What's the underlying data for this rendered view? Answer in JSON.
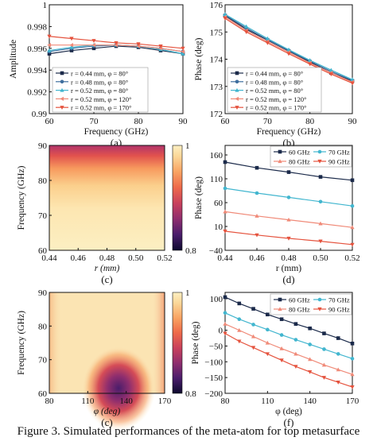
{
  "caption": "Figure 3. Simulated performances of the meta-atom for top metasurface",
  "colors": {
    "navy": "#1b2a4a",
    "steel": "#3d6e9e",
    "cyan": "#42b6cf",
    "salmon": "#f08a78",
    "coral": "#e5533e",
    "colormap": [
      "#0d0a2e",
      "#4a1d6b",
      "#8f2e6e",
      "#c9415c",
      "#ee6a4a",
      "#f9a463",
      "#fbd89a",
      "#fcefc2"
    ]
  },
  "chart_data": [
    {
      "id": "a",
      "type": "line",
      "panel_label": "(a)",
      "xlabel": "Frequency (GHz)",
      "ylabel": "Amplitude",
      "xlim": [
        60,
        90
      ],
      "ylim": [
        0.99,
        1
      ],
      "xticks": [
        "60",
        "70",
        "80",
        "90"
      ],
      "yticks": [
        "0.99",
        "0.992",
        "0.994",
        "0.996",
        "0.998",
        "1"
      ],
      "legend_position": "bottom-left",
      "x": [
        60,
        65,
        70,
        75,
        80,
        85,
        90
      ],
      "series": [
        {
          "name": "r = 0.44 mm, φ = 80°",
          "color": "#1b2a4a",
          "marker": "square",
          "values": [
            0.9955,
            0.9958,
            0.996,
            0.9962,
            0.9961,
            0.9958,
            0.9955
          ]
        },
        {
          "name": "r = 0.48 mm, φ = 80°",
          "color": "#3d6e9e",
          "marker": "circle",
          "values": [
            0.9957,
            0.996,
            0.9962,
            0.9963,
            0.9962,
            0.996,
            0.9957
          ]
        },
        {
          "name": "r = 0.52 mm, φ = 80°",
          "color": "#42b6cf",
          "marker": "triangle-up",
          "values": [
            0.9958,
            0.9961,
            0.9963,
            0.9963,
            0.9962,
            0.9959,
            0.9955
          ]
        },
        {
          "name": "r = 0.52 mm, φ = 120°",
          "color": "#f08a78",
          "marker": "triangle-left",
          "values": [
            0.9963,
            0.9963,
            0.9963,
            0.9963,
            0.9962,
            0.996,
            0.9957
          ]
        },
        {
          "name": "r = 0.52 mm, φ = 170°",
          "color": "#e5533e",
          "marker": "triangle-down",
          "values": [
            0.9971,
            0.9969,
            0.9967,
            0.9965,
            0.9964,
            0.9962,
            0.996
          ]
        }
      ]
    },
    {
      "id": "b",
      "type": "line",
      "panel_label": "(b)",
      "xlabel": "Frequency (GHz)",
      "ylabel": "Phase (deg)",
      "xlim": [
        60,
        90
      ],
      "ylim": [
        172,
        176
      ],
      "xticks": [
        "60",
        "70",
        "80",
        "90"
      ],
      "yticks": [
        "172",
        "173",
        "174",
        "175",
        "176"
      ],
      "legend_position": "bottom-left",
      "x": [
        60,
        65,
        70,
        75,
        80,
        85,
        90
      ],
      "series": [
        {
          "name": "r = 0.44 mm, φ = 80°",
          "color": "#1b2a4a",
          "marker": "square",
          "values": [
            175.6,
            175.1,
            174.7,
            174.3,
            173.9,
            173.5,
            173.2
          ]
        },
        {
          "name": "r = 0.48 mm, φ = 80°",
          "color": "#3d6e9e",
          "marker": "circle",
          "values": [
            175.62,
            175.15,
            174.72,
            174.32,
            173.93,
            173.55,
            173.22
          ]
        },
        {
          "name": "r = 0.52 mm, φ = 80°",
          "color": "#42b6cf",
          "marker": "triangle-up",
          "values": [
            175.65,
            175.2,
            174.76,
            174.35,
            173.96,
            173.6,
            173.25
          ]
        },
        {
          "name": "r = 0.52 mm, φ = 120°",
          "color": "#f08a78",
          "marker": "triangle-left",
          "values": [
            175.55,
            175.05,
            174.65,
            174.25,
            173.86,
            173.5,
            173.16
          ]
        },
        {
          "name": "r = 0.52 mm, φ = 170°",
          "color": "#e5533e",
          "marker": "triangle-down",
          "values": [
            175.5,
            175.0,
            174.6,
            174.2,
            173.82,
            173.45,
            173.12
          ]
        }
      ]
    },
    {
      "id": "c",
      "type": "heatmap",
      "panel_label": "(c)",
      "xlabel": "r (mm)",
      "ylabel": "Frequency (GHz)",
      "xlim": [
        0.44,
        0.52
      ],
      "ylim": [
        60,
        90
      ],
      "xticks": [
        "0.44",
        "0.46",
        "0.48",
        "0.50",
        "0.52"
      ],
      "yticks": [
        "60",
        "70",
        "80",
        "90"
      ],
      "colorbar": {
        "range": [
          0.8,
          1
        ],
        "ticks": [
          "0.8",
          "1"
        ]
      }
    },
    {
      "id": "d",
      "type": "line",
      "panel_label": "(d)",
      "xlabel": "r (mm)",
      "ylabel": "Phase (deg)",
      "xlim": [
        0.44,
        0.52
      ],
      "ylim": [
        -40,
        180
      ],
      "xticks": [
        "0.44",
        "0.46",
        "0.48",
        "0.50",
        "0.52"
      ],
      "yticks": [
        "−40",
        "10",
        "60",
        "110",
        "160"
      ],
      "legend_position": "top",
      "x": [
        0.44,
        0.46,
        0.48,
        0.5,
        0.52
      ],
      "series": [
        {
          "name": "60 GHz",
          "color": "#1b2a4a",
          "marker": "square",
          "values": [
            145,
            133,
            124,
            114,
            107
          ]
        },
        {
          "name": "70 GHz",
          "color": "#42b6cf",
          "marker": "circle",
          "values": [
            90,
            80,
            71,
            62,
            53
          ]
        },
        {
          "name": "80 GHz",
          "color": "#f08a78",
          "marker": "triangle-up",
          "values": [
            41,
            32,
            24,
            16,
            8
          ]
        },
        {
          "name": "90 GHz",
          "color": "#e5533e",
          "marker": "triangle-down",
          "values": [
            0,
            -8,
            -15,
            -21,
            -28
          ]
        }
      ]
    },
    {
      "id": "e",
      "type": "heatmap",
      "panel_label": "(c)",
      "xlabel": "φ (deg)",
      "ylabel": "Frequency (GHz)",
      "xlim": [
        80,
        170
      ],
      "ylim": [
        60,
        90
      ],
      "xticks": [
        "80",
        "110",
        "140",
        "170"
      ],
      "yticks": [
        "60",
        "70",
        "80",
        "90"
      ],
      "colorbar": {
        "range": [
          0.8,
          1
        ],
        "ticks": [
          "0.8",
          "1"
        ]
      }
    },
    {
      "id": "f",
      "type": "line",
      "panel_label": "(f)",
      "xlabel": "φ (deg)",
      "ylabel": "Phase (deg)",
      "xlim": [
        80,
        170
      ],
      "ylim": [
        -200,
        120
      ],
      "xticks": [
        "80",
        "110",
        "140",
        "170"
      ],
      "yticks": [
        "−200",
        "−150",
        "−100",
        "−50",
        "0",
        "100"
      ],
      "legend_position": "top-right",
      "x": [
        80,
        90,
        100,
        110,
        120,
        130,
        140,
        150,
        160,
        170
      ],
      "series": [
        {
          "name": "60 GHz",
          "color": "#1b2a4a",
          "marker": "square",
          "values": [
            105,
            85,
            68,
            50,
            35,
            20,
            6,
            -10,
            -25,
            -42
          ]
        },
        {
          "name": "70 GHz",
          "color": "#42b6cf",
          "marker": "circle",
          "values": [
            55,
            35,
            18,
            2,
            -15,
            -30,
            -45,
            -60,
            -75,
            -90
          ]
        },
        {
          "name": "80 GHz",
          "color": "#f08a78",
          "marker": "triangle-up",
          "values": [
            20,
            0,
            -20,
            -40,
            -58,
            -75,
            -92,
            -110,
            -125,
            -140
          ]
        },
        {
          "name": "90 GHz",
          "color": "#e5533e",
          "marker": "triangle-down",
          "values": [
            -10,
            -35,
            -55,
            -75,
            -95,
            -115,
            -132,
            -150,
            -165,
            -180
          ]
        }
      ]
    }
  ]
}
